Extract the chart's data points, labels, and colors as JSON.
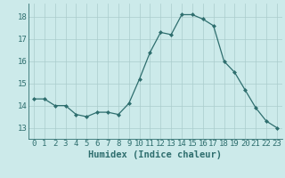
{
  "x": [
    0,
    1,
    2,
    3,
    4,
    5,
    6,
    7,
    8,
    9,
    10,
    11,
    12,
    13,
    14,
    15,
    16,
    17,
    18,
    19,
    20,
    21,
    22,
    23
  ],
  "y": [
    14.3,
    14.3,
    14.0,
    14.0,
    13.6,
    13.5,
    13.7,
    13.7,
    13.6,
    14.1,
    15.2,
    16.4,
    17.3,
    17.2,
    18.1,
    18.1,
    17.9,
    17.6,
    16.0,
    15.5,
    14.7,
    13.9,
    13.3,
    13.0
  ],
  "line_color": "#2e6e6e",
  "marker": "D",
  "marker_size": 2.0,
  "bg_color": "#cceaea",
  "grid_color_major": "#aacccc",
  "grid_color_minor": "#bbdddd",
  "xlabel": "Humidex (Indice chaleur)",
  "ylim": [
    12.5,
    18.6
  ],
  "xlim": [
    -0.5,
    23.5
  ],
  "yticks": [
    13,
    14,
    15,
    16,
    17,
    18
  ],
  "xticks": [
    0,
    1,
    2,
    3,
    4,
    5,
    6,
    7,
    8,
    9,
    10,
    11,
    12,
    13,
    14,
    15,
    16,
    17,
    18,
    19,
    20,
    21,
    22,
    23
  ],
  "tick_fontsize": 6.5,
  "xlabel_fontsize": 7.5,
  "linewidth": 0.9
}
